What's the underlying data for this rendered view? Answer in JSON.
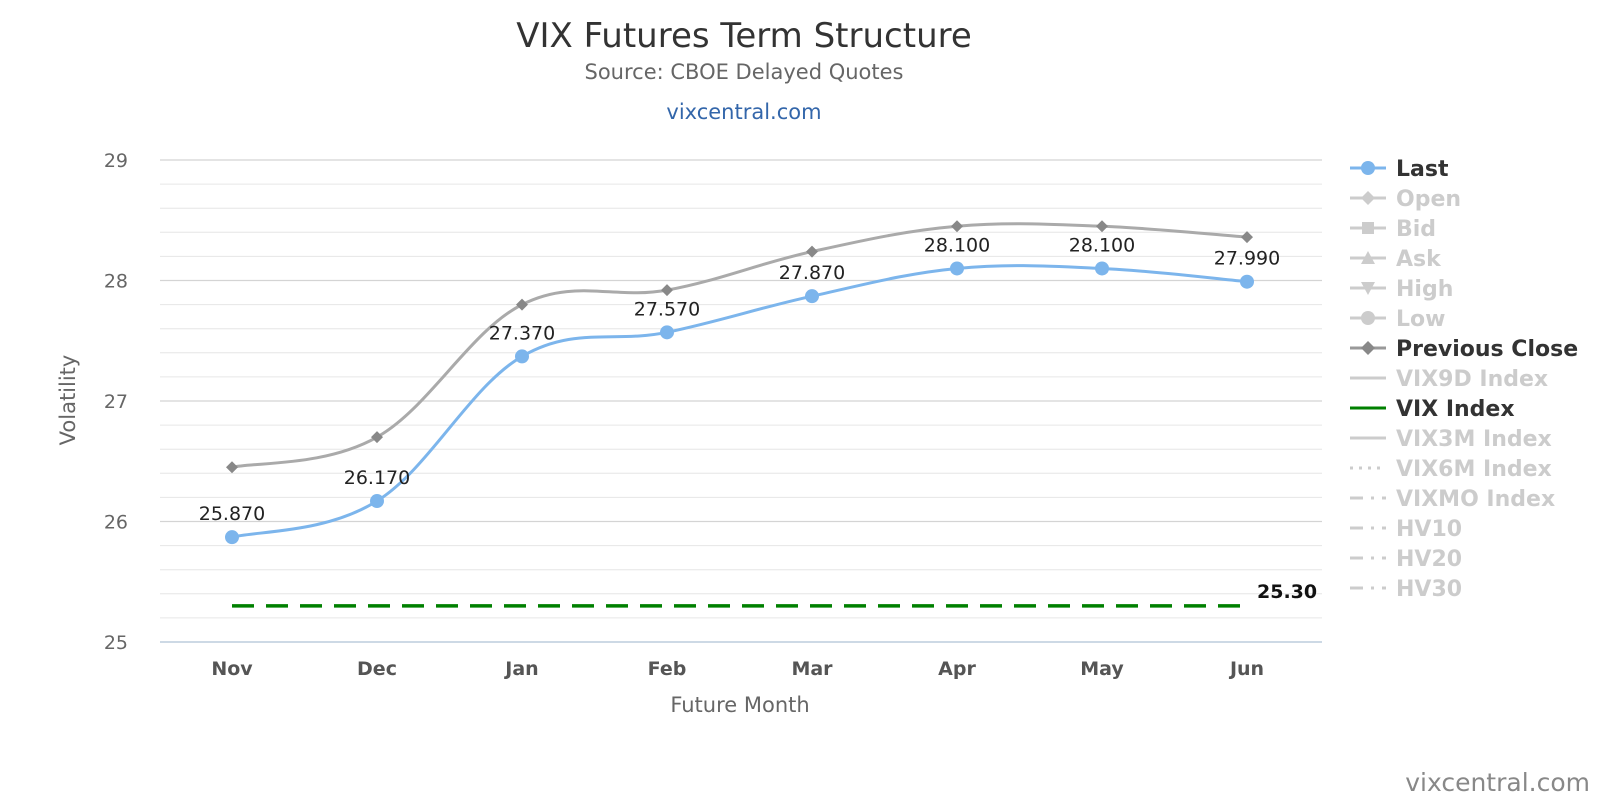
{
  "chart_data": {
    "type": "line",
    "title": "VIX Futures Term Structure",
    "subtitle": "Source: CBOE Delayed Quotes",
    "link_text": "vixcentral.com",
    "credit": "vixcentral.com",
    "xlabel": "Future Month",
    "ylabel": "Volatility",
    "categories": [
      "Nov",
      "Dec",
      "Jan",
      "Feb",
      "Mar",
      "Apr",
      "May",
      "Jun"
    ],
    "ylim": [
      25,
      29
    ],
    "yticks": [
      "25",
      "26",
      "27",
      "28",
      "29"
    ],
    "grid": true,
    "legend_position": "right",
    "series": [
      {
        "name": "Last",
        "values": [
          25.87,
          26.17,
          27.37,
          27.57,
          27.87,
          28.1,
          28.1,
          27.99
        ],
        "labels": [
          "25.870",
          "26.170",
          "27.370",
          "27.570",
          "27.870",
          "28.100",
          "28.100",
          "27.990"
        ],
        "color": "#7cb5ec",
        "marker": "circle"
      },
      {
        "name": "Previous Close",
        "values": [
          26.45,
          26.7,
          27.8,
          27.92,
          28.24,
          28.45,
          28.45,
          28.36
        ],
        "color": "#999999",
        "marker": "diamond"
      },
      {
        "name": "VIX Index",
        "values": [
          25.3,
          25.3,
          25.3,
          25.3,
          25.3,
          25.3,
          25.3,
          25.3
        ],
        "end_label": "25.30",
        "color": "#008000",
        "dash": "dashed"
      }
    ],
    "legend": [
      {
        "name": "Last",
        "color": "#7cb5ec",
        "symbol": "circle",
        "active": true
      },
      {
        "name": "Open",
        "color": "#cccccc",
        "symbol": "diamond",
        "active": false
      },
      {
        "name": "Bid",
        "color": "#cccccc",
        "symbol": "square",
        "active": false
      },
      {
        "name": "Ask",
        "color": "#cccccc",
        "symbol": "triangle",
        "active": false
      },
      {
        "name": "High",
        "color": "#cccccc",
        "symbol": "triangle-down",
        "active": false
      },
      {
        "name": "Low",
        "color": "#cccccc",
        "symbol": "circle",
        "active": false
      },
      {
        "name": "Previous Close",
        "color": "#999999",
        "symbol": "diamond",
        "active": true
      },
      {
        "name": "VIX9D Index",
        "color": "#cccccc",
        "symbol": "line",
        "active": false
      },
      {
        "name": "VIX Index",
        "color": "#008000",
        "symbol": "line",
        "active": true
      },
      {
        "name": "VIX3M Index",
        "color": "#cccccc",
        "symbol": "line",
        "active": false
      },
      {
        "name": "VIX6M Index",
        "color": "#cccccc",
        "symbol": "dotted",
        "active": false
      },
      {
        "name": "VIXMO Index",
        "color": "#cccccc",
        "symbol": "dashdot",
        "active": false
      },
      {
        "name": "HV10",
        "color": "#cccccc",
        "symbol": "dashdot",
        "active": false
      },
      {
        "name": "HV20",
        "color": "#cccccc",
        "symbol": "dashdot",
        "active": false
      },
      {
        "name": "HV30",
        "color": "#cccccc",
        "symbol": "dashdot",
        "active": false
      }
    ]
  }
}
